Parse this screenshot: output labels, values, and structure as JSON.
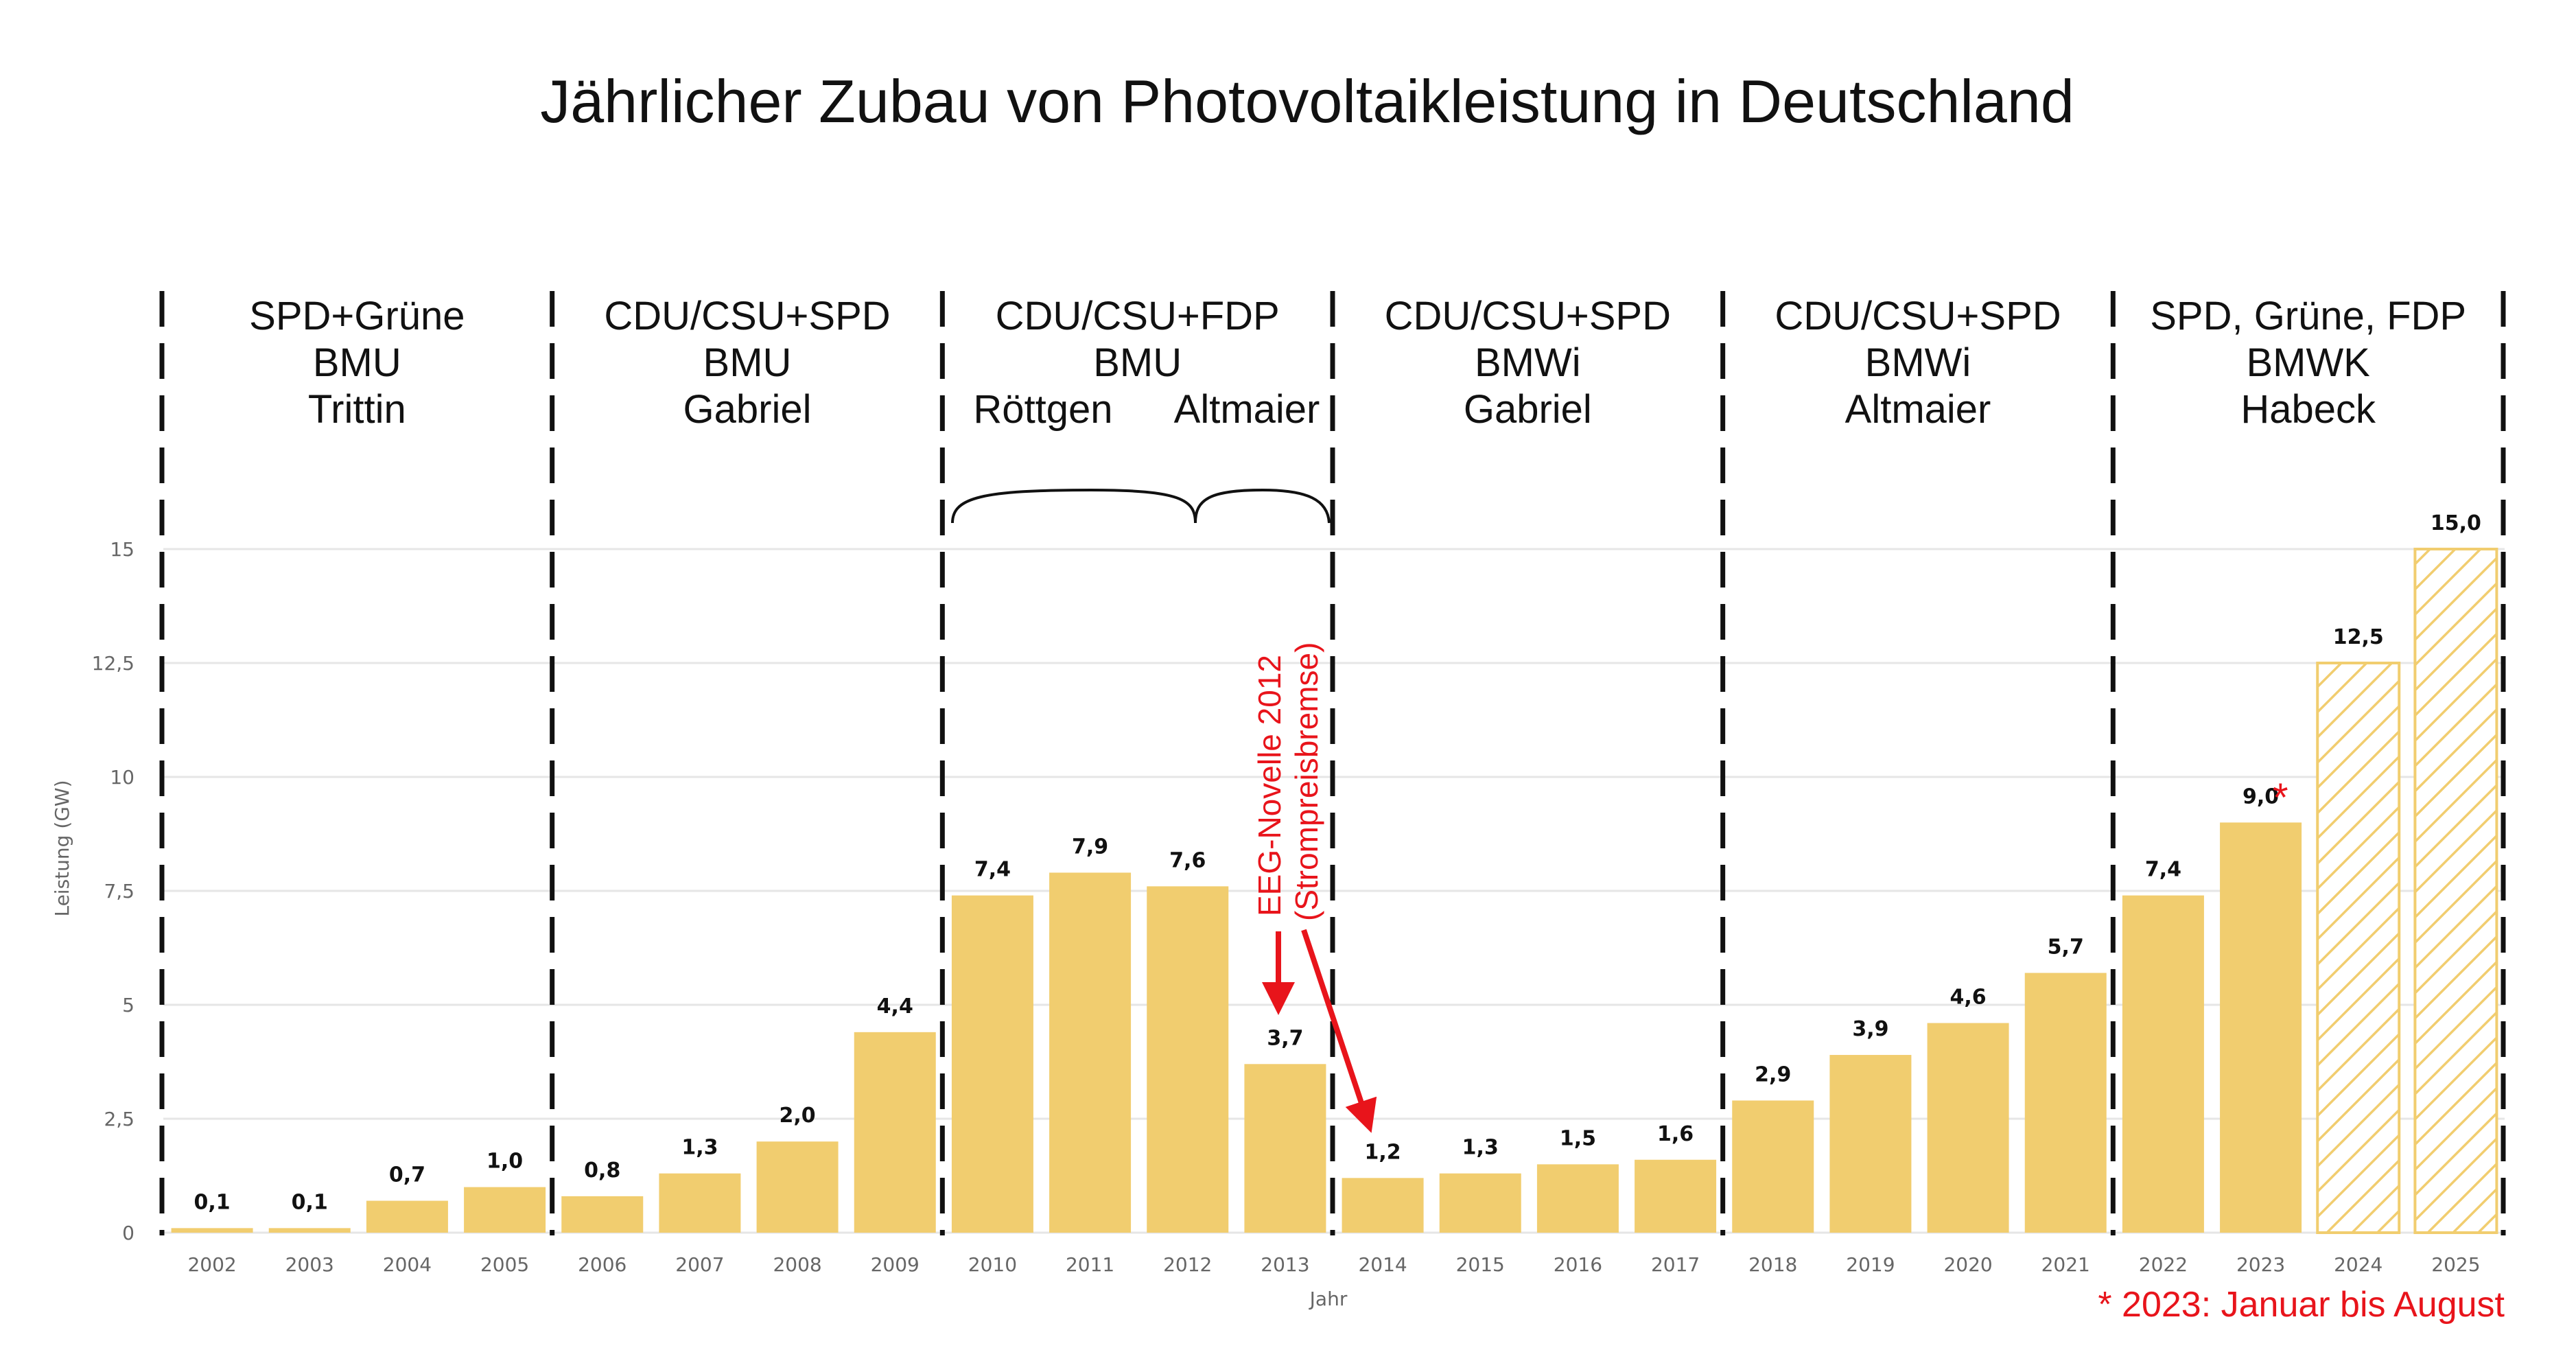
{
  "chart_data": {
    "type": "bar",
    "title": "Jährlicher Zubau von Photovoltaikleistung in Deutschland",
    "xlabel": "Jahr",
    "ylabel": "Leistung (GW)",
    "ylim": [
      0,
      15
    ],
    "yticks": [
      {
        "value": 0,
        "label": "0"
      },
      {
        "value": 2.5,
        "label": "2,5"
      },
      {
        "value": 5,
        "label": "5"
      },
      {
        "value": 7.5,
        "label": "7,5"
      },
      {
        "value": 10,
        "label": "10"
      },
      {
        "value": 12.5,
        "label": "12,5"
      },
      {
        "value": 15,
        "label": "15"
      }
    ],
    "grid": true,
    "categories": [
      "2002",
      "2003",
      "2004",
      "2005",
      "2006",
      "2007",
      "2008",
      "2009",
      "2010",
      "2011",
      "2012",
      "2013",
      "2014",
      "2015",
      "2016",
      "2017",
      "2018",
      "2019",
      "2020",
      "2021",
      "2022",
      "2023",
      "2024",
      "2025"
    ],
    "values": [
      0.1,
      0.1,
      0.7,
      1.0,
      0.8,
      1.3,
      2.0,
      4.4,
      7.4,
      7.9,
      7.6,
      3.7,
      1.2,
      1.3,
      1.5,
      1.6,
      2.9,
      3.9,
      4.6,
      5.7,
      7.4,
      9.0,
      12.5,
      15.0
    ],
    "value_labels": [
      "0,1",
      "0,1",
      "0,7",
      "1,0",
      "0,8",
      "1,3",
      "2,0",
      "4,4",
      "7,4",
      "7,9",
      "7,6",
      "3,7",
      "1,2",
      "1,3",
      "1,5",
      "1,6",
      "2,9",
      "3,9",
      "4,6",
      "5,7",
      "7,4",
      "9,0",
      "12,5",
      "15,0"
    ],
    "hatched_categories": [
      "2024",
      "2025"
    ],
    "bar_color": "#f1cd6f",
    "periods": [
      {
        "from": "2002",
        "to": "2005",
        "lines": [
          "SPD+Grüne",
          "BMU",
          "Trittin"
        ]
      },
      {
        "from": "2006",
        "to": "2009",
        "lines": [
          "CDU/CSU+SPD",
          "BMU",
          "Gabriel"
        ]
      },
      {
        "from": "2010",
        "to": "2013",
        "lines": [
          "CDU/CSU+FDP",
          "BMU"
        ],
        "ministers": [
          "Röttgen",
          "Altmaier"
        ]
      },
      {
        "from": "2014",
        "to": "2017",
        "lines": [
          "CDU/CSU+SPD",
          "BMWi",
          "Gabriel"
        ]
      },
      {
        "from": "2018",
        "to": "2021",
        "lines": [
          "CDU/CSU+SPD",
          "BMWi",
          "Altmaier"
        ]
      },
      {
        "from": "2022",
        "to": "2025",
        "lines": [
          "SPD, Grüne, FDP",
          "BMWK",
          "Habeck"
        ]
      }
    ],
    "annotations": {
      "eeg_line1": "EEG-Novelle 2012",
      "eeg_line2": "(Strompreisbremse)",
      "asterisk": "*",
      "footnote": "* 2023: Januar bis August",
      "annotation_color": "#e8141b"
    }
  }
}
